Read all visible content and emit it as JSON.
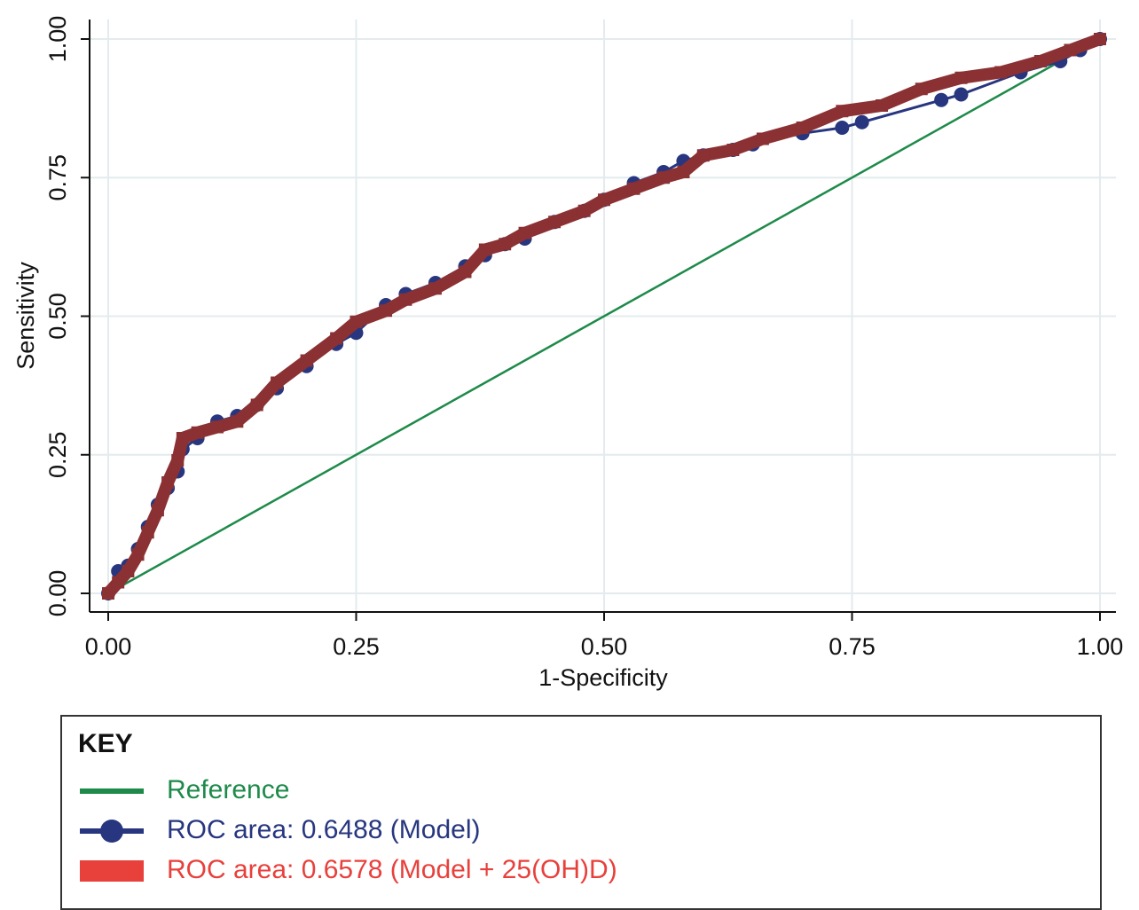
{
  "chart_data": {
    "type": "line",
    "xlabel": "1-Specificity",
    "ylabel": "Sensitivity",
    "xlim": [
      0,
      1
    ],
    "ylim": [
      0,
      1
    ],
    "xticks": [
      "0.00",
      "0.25",
      "0.50",
      "0.75",
      "1.00"
    ],
    "yticks": [
      "0.00",
      "0.25",
      "0.50",
      "0.75",
      "1.00"
    ],
    "grid": true,
    "legend": {
      "title": "KEY",
      "placement": "bottom"
    },
    "series": [
      {
        "name": "Reference",
        "color": "#1e8a4a",
        "marker": "none",
        "x": [
          0,
          1
        ],
        "y": [
          0,
          1
        ]
      },
      {
        "name": "ROC area: 0.6488 (Model)",
        "color": "#27367f",
        "marker": "circle",
        "x": [
          0.0,
          0.01,
          0.02,
          0.03,
          0.04,
          0.05,
          0.06,
          0.07,
          0.075,
          0.09,
          0.11,
          0.13,
          0.15,
          0.17,
          0.2,
          0.23,
          0.25,
          0.28,
          0.3,
          0.33,
          0.36,
          0.38,
          0.4,
          0.42,
          0.45,
          0.48,
          0.5,
          0.53,
          0.56,
          0.58,
          0.6,
          0.63,
          0.65,
          0.7,
          0.74,
          0.76,
          0.84,
          0.86,
          0.92,
          0.96,
          0.98,
          1.0
        ],
        "y": [
          0.0,
          0.04,
          0.05,
          0.08,
          0.12,
          0.16,
          0.19,
          0.22,
          0.26,
          0.28,
          0.31,
          0.32,
          0.34,
          0.37,
          0.41,
          0.45,
          0.47,
          0.52,
          0.54,
          0.56,
          0.59,
          0.61,
          0.63,
          0.64,
          0.67,
          0.69,
          0.71,
          0.74,
          0.76,
          0.78,
          0.79,
          0.8,
          0.81,
          0.83,
          0.84,
          0.85,
          0.89,
          0.9,
          0.94,
          0.96,
          0.98,
          1.0
        ]
      },
      {
        "name": "ROC area: 0.6578 (Model + 25(OH)D)",
        "color": "#8b3133",
        "marker": "square",
        "x": [
          0.0,
          0.01,
          0.02,
          0.03,
          0.04,
          0.05,
          0.06,
          0.07,
          0.075,
          0.09,
          0.11,
          0.13,
          0.15,
          0.17,
          0.2,
          0.23,
          0.25,
          0.28,
          0.3,
          0.33,
          0.36,
          0.38,
          0.4,
          0.42,
          0.45,
          0.48,
          0.5,
          0.53,
          0.56,
          0.58,
          0.6,
          0.63,
          0.66,
          0.7,
          0.74,
          0.78,
          0.82,
          0.86,
          0.9,
          0.94,
          0.97,
          1.0
        ],
        "y": [
          0.0,
          0.02,
          0.04,
          0.07,
          0.11,
          0.15,
          0.2,
          0.24,
          0.28,
          0.29,
          0.3,
          0.31,
          0.34,
          0.38,
          0.42,
          0.46,
          0.49,
          0.51,
          0.53,
          0.55,
          0.58,
          0.62,
          0.63,
          0.65,
          0.67,
          0.69,
          0.71,
          0.73,
          0.75,
          0.76,
          0.79,
          0.8,
          0.82,
          0.84,
          0.87,
          0.88,
          0.91,
          0.93,
          0.94,
          0.96,
          0.98,
          1.0
        ]
      }
    ]
  }
}
